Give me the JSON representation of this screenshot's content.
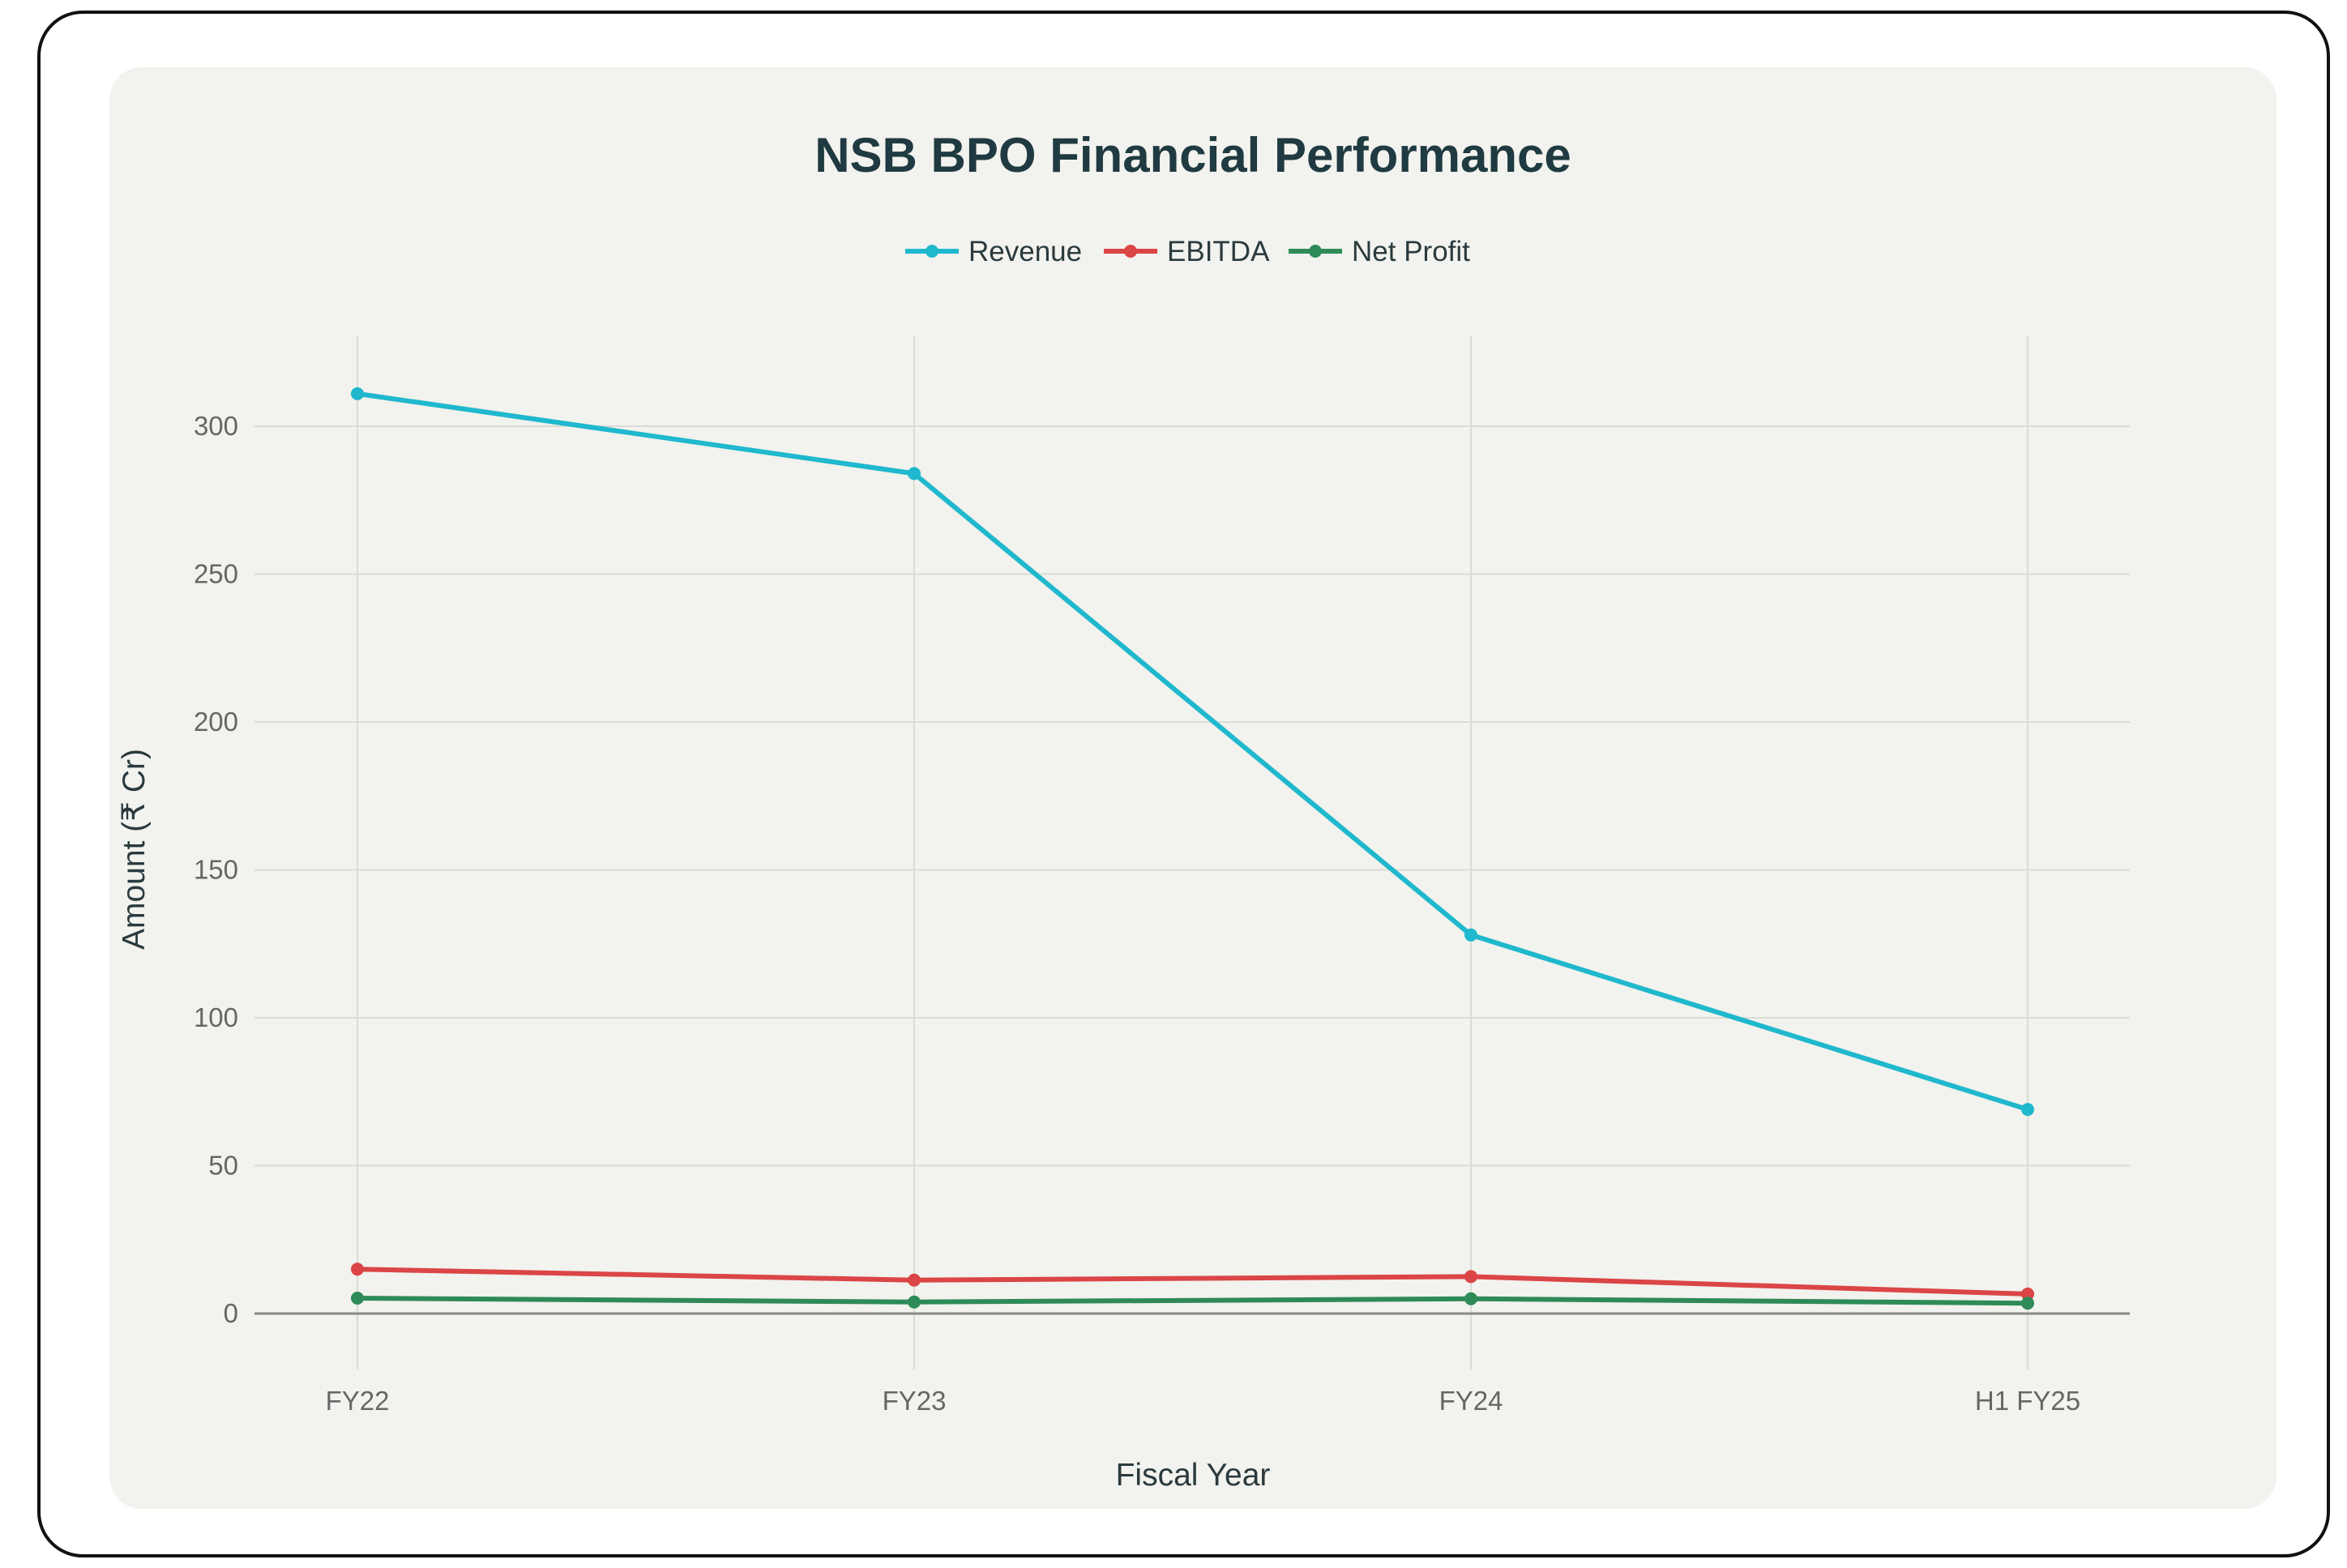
{
  "chart_data": {
    "type": "line",
    "title": "NSB BPO Financial Performance",
    "xlabel": "Fiscal Year",
    "ylabel": "Amount (₹ Cr)",
    "categories": [
      "FY22",
      "FY23",
      "FY24",
      "H1 FY25"
    ],
    "ylim": [
      0,
      330
    ],
    "yticks": [
      0,
      50,
      100,
      150,
      200,
      250,
      300
    ],
    "grid": true,
    "legend_position": "top-center",
    "series": [
      {
        "name": "Revenue",
        "color": "#1fb8cd",
        "values": [
          311,
          284,
          128,
          69
        ]
      },
      {
        "name": "EBITDA",
        "color": "#db4545",
        "values": [
          15,
          11.3,
          12.5,
          6.6
        ]
      },
      {
        "name": "Net Profit",
        "color": "#2e8b57",
        "values": [
          5.2,
          3.9,
          5.0,
          3.5
        ]
      }
    ]
  }
}
